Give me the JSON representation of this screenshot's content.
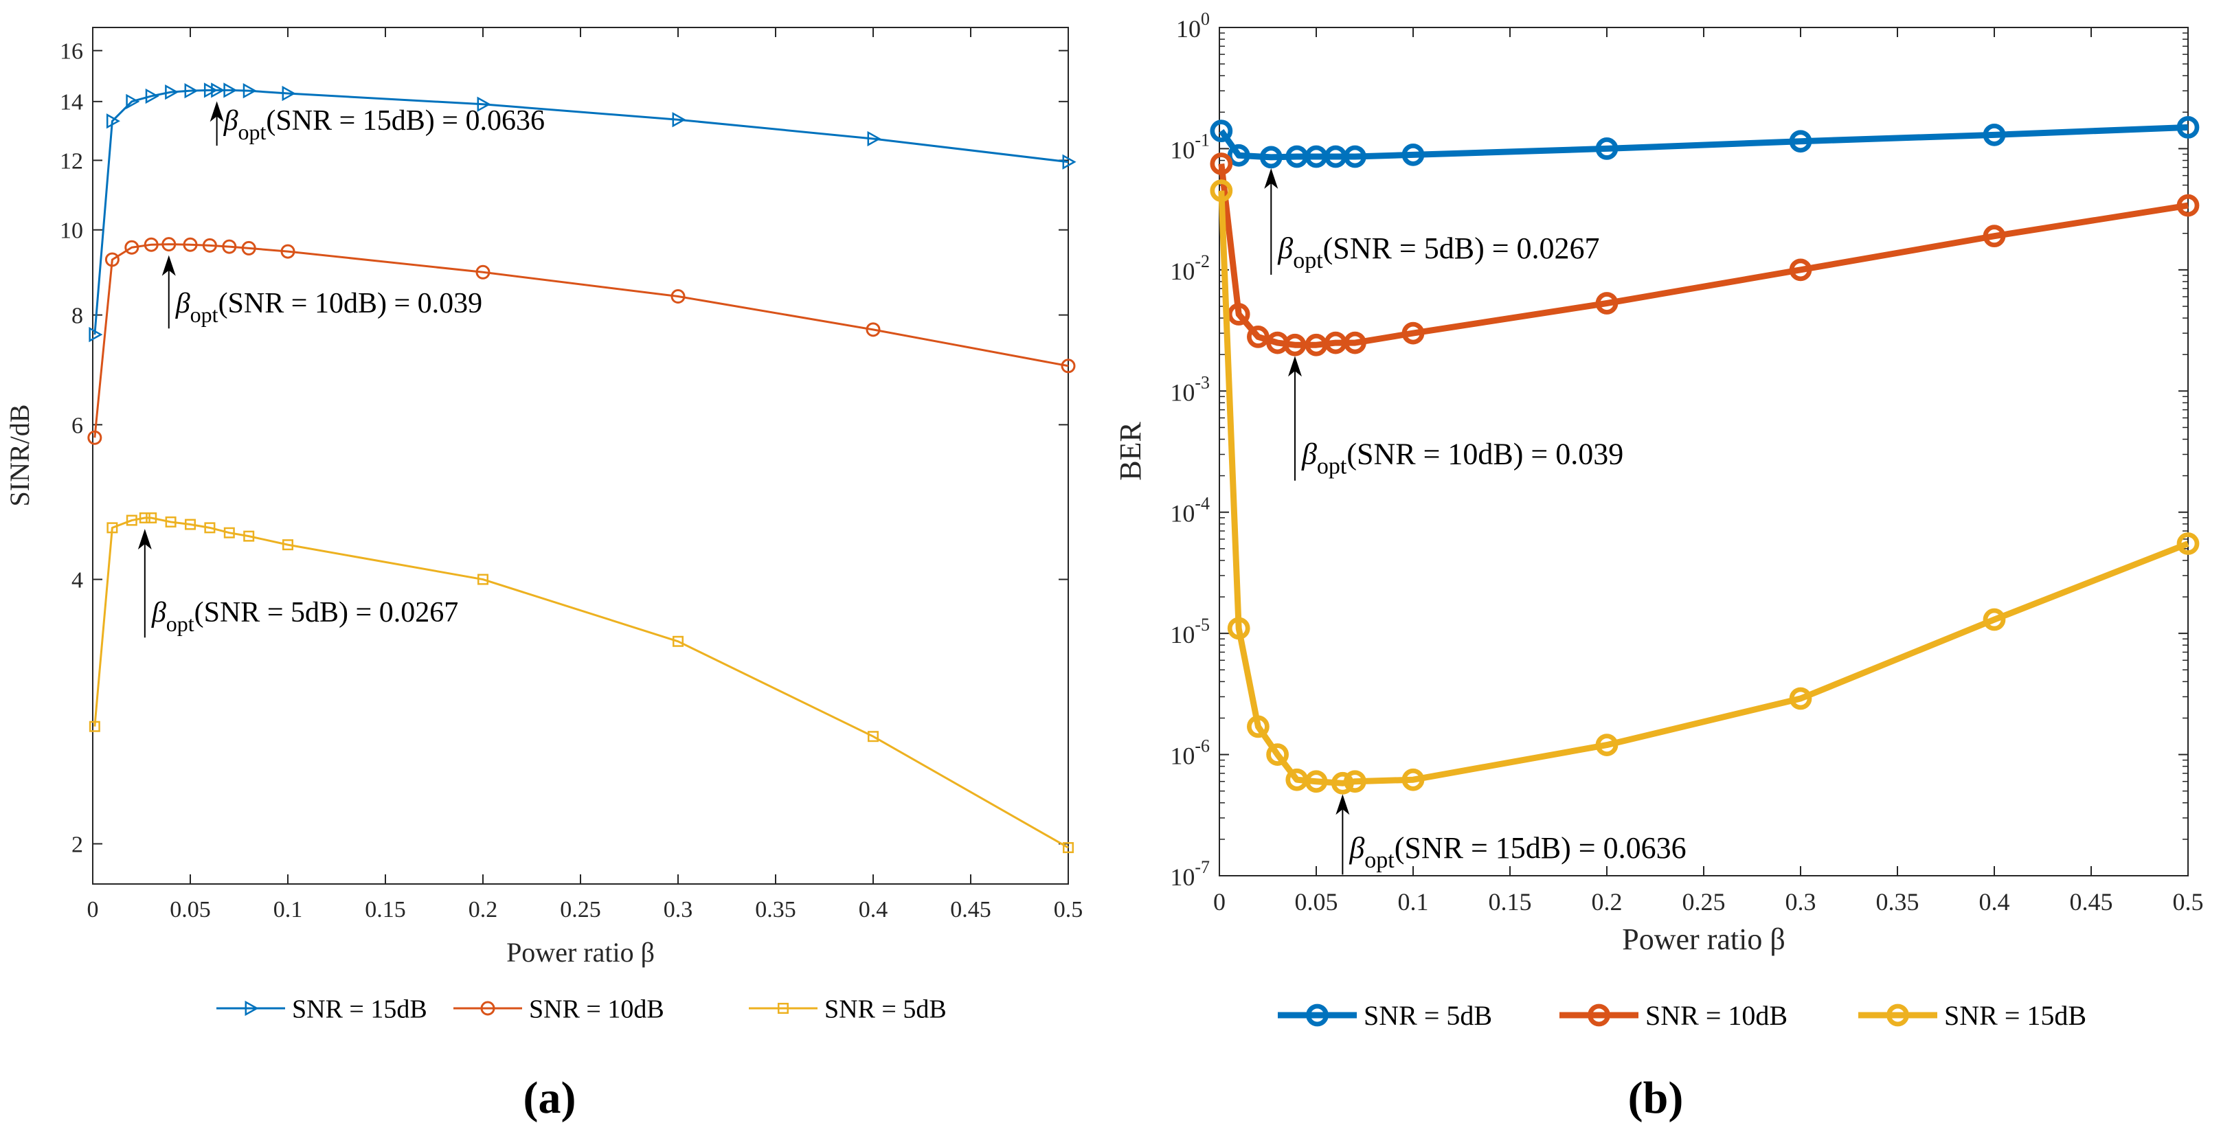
{
  "chart_data": [
    {
      "type": "line",
      "panel_label": "(a)",
      "xlabel": "Power ratio β",
      "ylabel": "SINR/dB",
      "xlim": [
        0,
        0.5
      ],
      "ylim": [
        1.8,
        17
      ],
      "yscale": "log",
      "x_ticks": [
        0,
        0.05,
        0.1,
        0.15,
        0.2,
        0.25,
        0.3,
        0.35,
        0.4,
        0.45,
        0.5
      ],
      "x_tick_labels": [
        "0",
        "0.05",
        "0.1",
        "0.15",
        "0.2",
        "0.25",
        "0.3",
        "0.35",
        "0.4",
        "0.45",
        "0.5"
      ],
      "y_ticks": [
        2,
        4,
        6,
        8,
        10,
        12,
        14,
        16
      ],
      "y_tick_labels": [
        "2",
        "4",
        "6",
        "8",
        "10",
        "12",
        "14",
        "16"
      ],
      "legend_position": "bottom",
      "series": [
        {
          "name": "SNR = 15dB",
          "color": "#0072BD",
          "marker": "triangle-right",
          "x": [
            0.001,
            0.01,
            0.02,
            0.03,
            0.04,
            0.05,
            0.06,
            0.0636,
            0.07,
            0.08,
            0.1,
            0.2,
            0.3,
            0.4,
            0.5
          ],
          "y": [
            7.6,
            13.3,
            14.0,
            14.2,
            14.35,
            14.4,
            14.42,
            14.42,
            14.42,
            14.4,
            14.3,
            13.9,
            13.35,
            12.7,
            11.95
          ]
        },
        {
          "name": "SNR = 10dB",
          "color": "#D95319",
          "marker": "circle",
          "x": [
            0.001,
            0.01,
            0.02,
            0.03,
            0.039,
            0.05,
            0.06,
            0.07,
            0.08,
            0.1,
            0.2,
            0.3,
            0.4,
            0.5
          ],
          "y": [
            5.8,
            9.25,
            9.55,
            9.62,
            9.63,
            9.62,
            9.6,
            9.57,
            9.53,
            9.45,
            8.95,
            8.4,
            7.7,
            7.0
          ]
        },
        {
          "name": "SNR = 5dB",
          "color": "#EDB120",
          "marker": "square",
          "x": [
            0.001,
            0.01,
            0.02,
            0.0267,
            0.03,
            0.04,
            0.05,
            0.06,
            0.07,
            0.08,
            0.1,
            0.2,
            0.3,
            0.4,
            0.5
          ],
          "y": [
            2.72,
            4.58,
            4.67,
            4.7,
            4.7,
            4.65,
            4.62,
            4.58,
            4.52,
            4.48,
            4.38,
            4.0,
            3.4,
            2.65,
            1.98
          ]
        }
      ],
      "annotations": [
        {
          "series": "SNR = 15dB",
          "beta": "β",
          "sub": "opt",
          "text": "(SNR = 15dB) = 0.0636",
          "x": 0.0636,
          "y": 14.42,
          "label_x": 0.0636,
          "label_y": 13.0
        },
        {
          "series": "SNR = 10dB",
          "beta": "β",
          "sub": "opt",
          "text": "(SNR = 10dB) = 0.039",
          "x": 0.039,
          "y": 9.63,
          "label_x": 0.039,
          "label_y": 8.05
        },
        {
          "series": "SNR = 5dB",
          "beta": "β",
          "sub": "opt",
          "text": "(SNR = 5dB) = 0.0267",
          "x": 0.0267,
          "y": 4.7,
          "label_x": 0.0267,
          "label_y": 3.58
        }
      ]
    },
    {
      "type": "line",
      "panel_label": "(b)",
      "xlabel": "Power ratio β",
      "ylabel": "BER",
      "xlim": [
        0,
        0.5
      ],
      "ylim": [
        1e-07,
        1
      ],
      "yscale": "log",
      "x_ticks": [
        0,
        0.05,
        0.1,
        0.15,
        0.2,
        0.25,
        0.3,
        0.35,
        0.4,
        0.45,
        0.5
      ],
      "x_tick_labels": [
        "0",
        "0.05",
        "0.1",
        "0.15",
        "0.2",
        "0.25",
        "0.3",
        "0.35",
        "0.4",
        "0.45",
        "0.5"
      ],
      "y_ticks": [
        1e-07,
        1e-06,
        1e-05,
        0.0001,
        0.001,
        0.01,
        0.1,
        1
      ],
      "y_tick_exponents": [
        "-7",
        "-6",
        "-5",
        "-4",
        "-3",
        "-2",
        "-1",
        "0"
      ],
      "y_tick_base": "10",
      "legend_position": "bottom",
      "series": [
        {
          "name": "SNR = 5dB",
          "color": "#0072BD",
          "marker": "circle",
          "x": [
            0.001,
            0.01,
            0.0267,
            0.04,
            0.05,
            0.06,
            0.07,
            0.1,
            0.2,
            0.3,
            0.4,
            0.5
          ],
          "y": [
            0.14,
            0.088,
            0.085,
            0.086,
            0.086,
            0.086,
            0.086,
            0.089,
            0.1,
            0.115,
            0.13,
            0.15
          ]
        },
        {
          "name": "SNR = 10dB",
          "color": "#D95319",
          "marker": "circle",
          "x": [
            0.001,
            0.01,
            0.02,
            0.03,
            0.039,
            0.05,
            0.06,
            0.07,
            0.1,
            0.2,
            0.3,
            0.4,
            0.5
          ],
          "y": [
            0.075,
            0.0043,
            0.0028,
            0.0025,
            0.0024,
            0.0024,
            0.0025,
            0.0025,
            0.003,
            0.0053,
            0.01,
            0.019,
            0.034
          ]
        },
        {
          "name": "SNR = 15dB",
          "color": "#EDB120",
          "marker": "circle",
          "x": [
            0.001,
            0.01,
            0.02,
            0.03,
            0.04,
            0.05,
            0.0636,
            0.07,
            0.1,
            0.2,
            0.3,
            0.4,
            0.5
          ],
          "y": [
            0.045,
            1.1e-05,
            1.7e-06,
            1e-06,
            6.2e-07,
            6e-07,
            5.8e-07,
            6e-07,
            6.2e-07,
            1.2e-06,
            2.9e-06,
            1.3e-05,
            5.5e-05
          ]
        }
      ],
      "annotations": [
        {
          "series": "SNR = 5dB",
          "beta": "β",
          "sub": "opt",
          "text": "(SNR = 5dB) = 0.0267",
          "x": 0.0267,
          "y": 0.085,
          "label_x": 0.0267,
          "label_y": 0.0125
        },
        {
          "series": "SNR = 10dB",
          "beta": "β",
          "sub": "opt",
          "text": "(SNR = 10dB) = 0.039",
          "x": 0.039,
          "y": 0.0024,
          "label_x": 0.039,
          "label_y": 0.00025
        },
        {
          "series": "SNR = 15dB",
          "beta": "β",
          "sub": "opt",
          "text": "(SNR = 15dB) = 0.0636",
          "x": 0.0636,
          "y": 5.8e-07,
          "label_x": 0.0636,
          "label_y": 1.4e-07
        }
      ]
    }
  ]
}
